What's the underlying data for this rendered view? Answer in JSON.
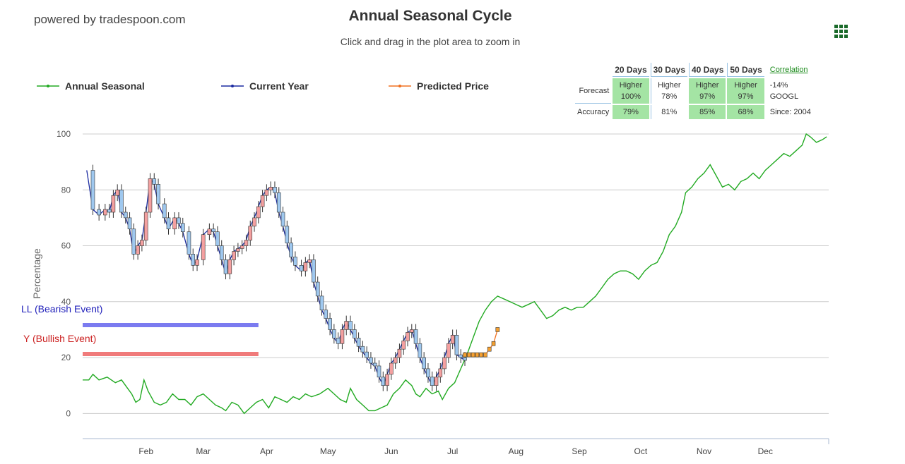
{
  "header": {
    "powered_by": "powered by tradespoon.com",
    "title": "Annual Seasonal Cycle",
    "subtitle": "Click and drag in the plot area to zoom in",
    "menu_icon": "grid-menu-icon"
  },
  "legend": [
    {
      "label": "Annual Seasonal",
      "color": "#22aa22"
    },
    {
      "label": "Current Year",
      "color": "#1a2aa0"
    },
    {
      "label": "Predicted Price",
      "color": "#f07020"
    }
  ],
  "forecast_table": {
    "headers": [
      "20 Days",
      "30 Days",
      "40 Days",
      "50 Days"
    ],
    "forecast_label": "Forecast",
    "forecast": [
      {
        "direction": "Higher",
        "percent": "100%",
        "highlight": true
      },
      {
        "direction": "Higher",
        "percent": "78%",
        "highlight": false
      },
      {
        "direction": "Higher",
        "percent": "97%",
        "highlight": true
      },
      {
        "direction": "Higher",
        "percent": "97%",
        "highlight": true
      }
    ],
    "accuracy_label": "Accuracy",
    "accuracy": [
      {
        "value": "79%",
        "highlight": true
      },
      {
        "value": "81%",
        "highlight": false
      },
      {
        "value": "85%",
        "highlight": true
      },
      {
        "value": "68%",
        "highlight": true
      }
    ],
    "correlation_label": "Correlation",
    "correlation_value": "-14%",
    "ticker": "GOOGL",
    "since": "Since: 2004"
  },
  "events": {
    "bearish_label": "LL (Bearish Event)",
    "bullish_label": "Y (Bullish Event)",
    "bearish_color": "#7b7bf0",
    "bullish_color": "#f07b7b"
  },
  "chart_data": {
    "type": "line",
    "ylabel": "Percentage",
    "ylim": [
      -9,
      100
    ],
    "yticks": [
      0,
      20,
      40,
      60,
      80,
      100
    ],
    "xlim": [
      0,
      365
    ],
    "months": [
      "Feb",
      "Mar",
      "Apr",
      "May",
      "Jun",
      "Jul",
      "Aug",
      "Sep",
      "Oct",
      "Nov",
      "Dec"
    ],
    "month_positions": [
      31,
      59,
      90,
      120,
      151,
      181,
      212,
      243,
      273,
      304,
      334
    ],
    "grid": true,
    "series": [
      {
        "name": "Annual Seasonal",
        "points": [
          [
            0,
            12
          ],
          [
            3,
            12
          ],
          [
            5,
            14
          ],
          [
            8,
            12
          ],
          [
            12,
            13
          ],
          [
            16,
            11
          ],
          [
            19,
            12
          ],
          [
            22,
            9
          ],
          [
            24,
            7
          ],
          [
            26,
            4
          ],
          [
            28,
            5
          ],
          [
            30,
            12
          ],
          [
            32,
            8
          ],
          [
            35,
            4
          ],
          [
            38,
            3
          ],
          [
            41,
            4
          ],
          [
            44,
            7
          ],
          [
            47,
            5
          ],
          [
            50,
            5
          ],
          [
            53,
            3
          ],
          [
            56,
            6
          ],
          [
            59,
            7
          ],
          [
            62,
            5
          ],
          [
            65,
            3
          ],
          [
            68,
            2
          ],
          [
            70,
            1
          ],
          [
            73,
            4
          ],
          [
            76,
            3
          ],
          [
            79,
            0
          ],
          [
            82,
            2
          ],
          [
            85,
            4
          ],
          [
            88,
            5
          ],
          [
            91,
            2
          ],
          [
            94,
            6
          ],
          [
            97,
            5
          ],
          [
            100,
            4
          ],
          [
            103,
            6
          ],
          [
            106,
            5
          ],
          [
            109,
            7
          ],
          [
            112,
            6
          ],
          [
            116,
            7
          ],
          [
            120,
            9
          ],
          [
            123,
            7
          ],
          [
            126,
            5
          ],
          [
            129,
            4
          ],
          [
            131,
            9
          ],
          [
            134,
            5
          ],
          [
            137,
            3
          ],
          [
            140,
            1
          ],
          [
            143,
            1
          ],
          [
            146,
            2
          ],
          [
            149,
            3
          ],
          [
            152,
            7
          ],
          [
            155,
            9
          ],
          [
            158,
            12
          ],
          [
            161,
            10
          ],
          [
            163,
            7
          ],
          [
            165,
            6
          ],
          [
            168,
            9
          ],
          [
            171,
            7
          ],
          [
            174,
            8
          ],
          [
            176,
            5
          ],
          [
            179,
            9
          ],
          [
            182,
            11
          ],
          [
            185,
            16
          ],
          [
            188,
            21
          ],
          [
            191,
            27
          ],
          [
            194,
            33
          ],
          [
            197,
            37
          ],
          [
            200,
            40
          ],
          [
            203,
            42
          ],
          [
            206,
            41
          ],
          [
            209,
            40
          ],
          [
            212,
            39
          ],
          [
            215,
            38
          ],
          [
            218,
            39
          ],
          [
            221,
            40
          ],
          [
            224,
            37
          ],
          [
            227,
            34
          ],
          [
            230,
            35
          ],
          [
            233,
            37
          ],
          [
            236,
            38
          ],
          [
            239,
            37
          ],
          [
            242,
            38
          ],
          [
            245,
            38
          ],
          [
            248,
            40
          ],
          [
            251,
            42
          ],
          [
            254,
            45
          ],
          [
            257,
            48
          ],
          [
            260,
            50
          ],
          [
            263,
            51
          ],
          [
            266,
            51
          ],
          [
            269,
            50
          ],
          [
            272,
            48
          ],
          [
            275,
            51
          ],
          [
            278,
            53
          ],
          [
            281,
            54
          ],
          [
            284,
            58
          ],
          [
            287,
            64
          ],
          [
            290,
            67
          ],
          [
            293,
            72
          ],
          [
            295,
            79
          ],
          [
            298,
            81
          ],
          [
            301,
            84
          ],
          [
            304,
            86
          ],
          [
            307,
            89
          ],
          [
            310,
            85
          ],
          [
            313,
            81
          ],
          [
            316,
            82
          ],
          [
            319,
            80
          ],
          [
            322,
            83
          ],
          [
            325,
            84
          ],
          [
            328,
            86
          ],
          [
            331,
            84
          ],
          [
            334,
            87
          ],
          [
            337,
            89
          ],
          [
            340,
            91
          ],
          [
            343,
            93
          ],
          [
            346,
            92
          ],
          [
            349,
            94
          ],
          [
            352,
            96
          ],
          [
            354,
            100
          ],
          [
            356,
            99
          ],
          [
            359,
            97
          ],
          [
            362,
            98
          ],
          [
            364,
            99
          ]
        ]
      },
      {
        "name": "Current Year",
        "points": [
          [
            2,
            87
          ],
          [
            5,
            73
          ],
          [
            8,
            71
          ],
          [
            11,
            73
          ],
          [
            13,
            72
          ],
          [
            15,
            78
          ],
          [
            17,
            80
          ],
          [
            19,
            72
          ],
          [
            21,
            70
          ],
          [
            23,
            66
          ],
          [
            25,
            57
          ],
          [
            27,
            60
          ],
          [
            29,
            62
          ],
          [
            31,
            72
          ],
          [
            33,
            84
          ],
          [
            35,
            82
          ],
          [
            37,
            75
          ],
          [
            40,
            70
          ],
          [
            42,
            66
          ],
          [
            45,
            70
          ],
          [
            47,
            68
          ],
          [
            49,
            65
          ],
          [
            52,
            57
          ],
          [
            54,
            53
          ],
          [
            56,
            55
          ],
          [
            59,
            64
          ],
          [
            62,
            66
          ],
          [
            64,
            65
          ],
          [
            66,
            60
          ],
          [
            68,
            55
          ],
          [
            70,
            50
          ],
          [
            72,
            55
          ],
          [
            74,
            58
          ],
          [
            76,
            59
          ],
          [
            78,
            60
          ],
          [
            80,
            62
          ],
          [
            82,
            67
          ],
          [
            84,
            70
          ],
          [
            86,
            74
          ],
          [
            88,
            78
          ],
          [
            90,
            80
          ],
          [
            92,
            81
          ],
          [
            94,
            79
          ],
          [
            96,
            72
          ],
          [
            98,
            67
          ],
          [
            100,
            61
          ],
          [
            102,
            56
          ],
          [
            104,
            53
          ],
          [
            107,
            51
          ],
          [
            109,
            54
          ],
          [
            111,
            55
          ],
          [
            113,
            47
          ],
          [
            115,
            42
          ],
          [
            117,
            37
          ],
          [
            119,
            34
          ],
          [
            121,
            30
          ],
          [
            123,
            27
          ],
          [
            125,
            25
          ],
          [
            127,
            30
          ],
          [
            129,
            33
          ],
          [
            131,
            30
          ],
          [
            133,
            27
          ],
          [
            135,
            24
          ],
          [
            137,
            22
          ],
          [
            139,
            20
          ],
          [
            141,
            18
          ],
          [
            143,
            17
          ],
          [
            145,
            13
          ],
          [
            147,
            10
          ],
          [
            149,
            14
          ],
          [
            151,
            18
          ],
          [
            153,
            20
          ],
          [
            155,
            23
          ],
          [
            157,
            26
          ],
          [
            159,
            29
          ],
          [
            161,
            30
          ],
          [
            163,
            25
          ],
          [
            165,
            20
          ],
          [
            167,
            16
          ],
          [
            169,
            13
          ],
          [
            171,
            10
          ],
          [
            173,
            13
          ],
          [
            175,
            16
          ],
          [
            177,
            20
          ],
          [
            179,
            25
          ],
          [
            181,
            28
          ],
          [
            183,
            21
          ],
          [
            185,
            20
          ],
          [
            187,
            19
          ]
        ]
      },
      {
        "name": "Predicted Price",
        "points": [
          [
            187,
            21
          ],
          [
            189,
            21
          ],
          [
            191,
            21
          ],
          [
            193,
            21
          ],
          [
            195,
            21
          ],
          [
            197,
            21
          ],
          [
            199,
            23
          ],
          [
            201,
            25
          ],
          [
            203,
            30
          ]
        ]
      }
    ],
    "annotations": [
      "LL (Bearish Event)",
      "Y (Bullish Event)"
    ]
  }
}
